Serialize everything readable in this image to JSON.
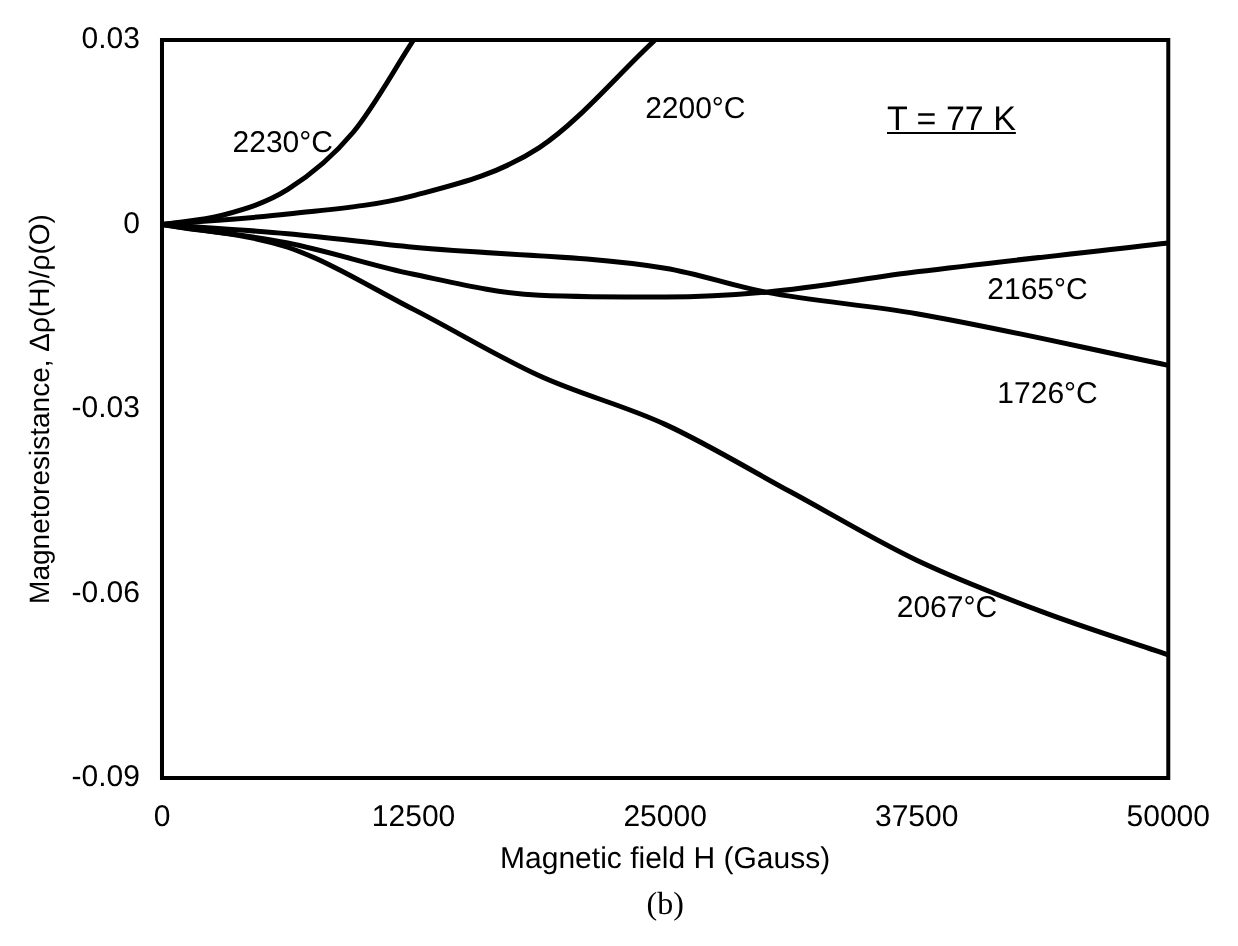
{
  "chart_data": {
    "type": "line",
    "xlabel": "Magnetic field H (Gauss)",
    "ylabel": "Magnetoresistance, Δρ(H)/ρ(O)",
    "xlim": [
      0,
      50000
    ],
    "ylim": [
      -0.09,
      0.03
    ],
    "xticks": [
      0,
      12500,
      25000,
      37500,
      50000
    ],
    "yticks": [
      -0.09,
      -0.06,
      -0.03,
      0,
      0.03
    ],
    "grid": false,
    "legend": false,
    "marker": "none",
    "line_style": "solid",
    "series": [
      {
        "name": "2230°C",
        "color": "#000000",
        "x": [
          0,
          3000,
          6250,
          9500,
          12500
        ],
        "values": [
          0,
          0.0015,
          0.0057,
          0.015,
          0.03
        ]
      },
      {
        "name": "2200°C",
        "color": "#000000",
        "x": [
          0,
          6250,
          12500,
          18750,
          24500
        ],
        "values": [
          0,
          0.0017,
          0.0047,
          0.0125,
          0.03
        ]
      },
      {
        "name": "2165°C",
        "color": "#000000",
        "x": [
          0,
          6250,
          12500,
          18750,
          25000,
          30000,
          37500,
          50000
        ],
        "values": [
          0,
          -0.003,
          -0.0081,
          -0.0115,
          -0.0118,
          -0.011,
          -0.0077,
          -0.003
        ]
      },
      {
        "name": "1726°C",
        "color": "#000000",
        "x": [
          0,
          6250,
          12500,
          25000,
          30000,
          37500,
          50000
        ],
        "values": [
          0,
          -0.0015,
          -0.0037,
          -0.0071,
          -0.011,
          -0.0145,
          -0.0229
        ]
      },
      {
        "name": "2067°C",
        "color": "#000000",
        "x": [
          0,
          6250,
          12500,
          18750,
          25000,
          31250,
          37500,
          43750,
          50000
        ],
        "values": [
          0,
          -0.0037,
          -0.0138,
          -0.0246,
          -0.0325,
          -0.0435,
          -0.0546,
          -0.063,
          -0.07
        ]
      }
    ],
    "annotations": [
      "T = 77 K",
      "(b)"
    ]
  }
}
